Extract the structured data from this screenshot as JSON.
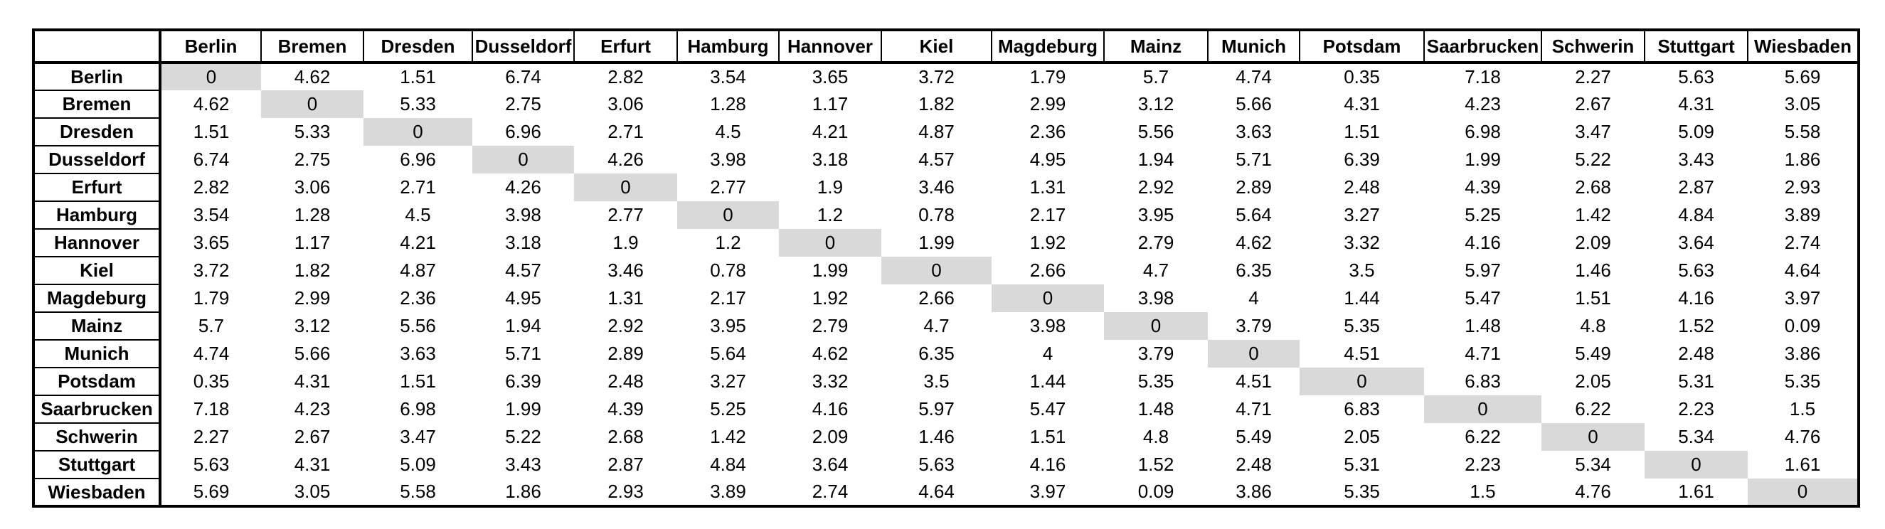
{
  "colors": {
    "diagonal_highlight": "#d9d9d9",
    "border": "#000000",
    "background": "#ffffff",
    "text": "#000000"
  },
  "chart_data": {
    "type": "table",
    "title": "",
    "corner_label": "",
    "categories": [
      "Berlin",
      "Bremen",
      "Dresden",
      "Dusseldorf",
      "Erfurt",
      "Hamburg",
      "Hannover",
      "Kiel",
      "Magdeburg",
      "Mainz",
      "Munich",
      "Potsdam",
      "Saarbrucken",
      "Schwerin",
      "Stuttgart",
      "Wiesbaden"
    ],
    "rows": [
      {
        "label": "Berlin",
        "values": [
          0,
          4.62,
          1.51,
          6.74,
          2.82,
          3.54,
          3.65,
          3.72,
          1.79,
          5.7,
          4.74,
          0.35,
          7.18,
          2.27,
          5.63,
          5.69
        ]
      },
      {
        "label": "Bremen",
        "values": [
          4.62,
          0,
          5.33,
          2.75,
          3.06,
          1.28,
          1.17,
          1.82,
          2.99,
          3.12,
          5.66,
          4.31,
          4.23,
          2.67,
          4.31,
          3.05
        ]
      },
      {
        "label": "Dresden",
        "values": [
          1.51,
          5.33,
          0,
          6.96,
          2.71,
          4.5,
          4.21,
          4.87,
          2.36,
          5.56,
          3.63,
          1.51,
          6.98,
          3.47,
          5.09,
          5.58
        ]
      },
      {
        "label": "Dusseldorf",
        "values": [
          6.74,
          2.75,
          6.96,
          0,
          4.26,
          3.98,
          3.18,
          4.57,
          4.95,
          1.94,
          5.71,
          6.39,
          1.99,
          5.22,
          3.43,
          1.86
        ]
      },
      {
        "label": "Erfurt",
        "values": [
          2.82,
          3.06,
          2.71,
          4.26,
          0,
          2.77,
          1.9,
          3.46,
          1.31,
          2.92,
          2.89,
          2.48,
          4.39,
          2.68,
          2.87,
          2.93
        ]
      },
      {
        "label": "Hamburg",
        "values": [
          3.54,
          1.28,
          4.5,
          3.98,
          2.77,
          0,
          1.2,
          0.78,
          2.17,
          3.95,
          5.64,
          3.27,
          5.25,
          1.42,
          4.84,
          3.89
        ]
      },
      {
        "label": "Hannover",
        "values": [
          3.65,
          1.17,
          4.21,
          3.18,
          1.9,
          1.2,
          0,
          1.99,
          1.92,
          2.79,
          4.62,
          3.32,
          4.16,
          2.09,
          3.64,
          2.74
        ]
      },
      {
        "label": "Kiel",
        "values": [
          3.72,
          1.82,
          4.87,
          4.57,
          3.46,
          0.78,
          1.99,
          0,
          2.66,
          4.7,
          6.35,
          3.5,
          5.97,
          1.46,
          5.63,
          4.64
        ]
      },
      {
        "label": "Magdeburg",
        "values": [
          1.79,
          2.99,
          2.36,
          4.95,
          1.31,
          2.17,
          1.92,
          2.66,
          0,
          3.98,
          4,
          1.44,
          5.47,
          1.51,
          4.16,
          3.97
        ]
      },
      {
        "label": "Mainz",
        "values": [
          5.7,
          3.12,
          5.56,
          1.94,
          2.92,
          3.95,
          2.79,
          4.7,
          3.98,
          0,
          3.79,
          5.35,
          1.48,
          4.8,
          1.52,
          0.09
        ]
      },
      {
        "label": "Munich",
        "values": [
          4.74,
          5.66,
          3.63,
          5.71,
          2.89,
          5.64,
          4.62,
          6.35,
          4,
          3.79,
          0,
          4.51,
          4.71,
          5.49,
          2.48,
          3.86
        ]
      },
      {
        "label": "Potsdam",
        "values": [
          0.35,
          4.31,
          1.51,
          6.39,
          2.48,
          3.27,
          3.32,
          3.5,
          1.44,
          5.35,
          4.51,
          0,
          6.83,
          2.05,
          5.31,
          5.35
        ]
      },
      {
        "label": "Saarbrucken",
        "values": [
          7.18,
          4.23,
          6.98,
          1.99,
          4.39,
          5.25,
          4.16,
          5.97,
          5.47,
          1.48,
          4.71,
          6.83,
          0,
          6.22,
          2.23,
          1.5
        ]
      },
      {
        "label": "Schwerin",
        "values": [
          2.27,
          2.67,
          3.47,
          5.22,
          2.68,
          1.42,
          2.09,
          1.46,
          1.51,
          4.8,
          5.49,
          2.05,
          6.22,
          0,
          5.34,
          4.76
        ]
      },
      {
        "label": "Stuttgart",
        "values": [
          5.63,
          4.31,
          5.09,
          3.43,
          2.87,
          4.84,
          3.64,
          5.63,
          4.16,
          1.52,
          2.48,
          5.31,
          2.23,
          5.34,
          0,
          1.61
        ]
      },
      {
        "label": "Wiesbaden",
        "values": [
          5.69,
          3.05,
          5.58,
          1.86,
          2.93,
          3.89,
          2.74,
          4.64,
          3.97,
          0.09,
          3.86,
          5.35,
          1.5,
          4.76,
          1.61,
          0
        ]
      }
    ],
    "layout": {
      "diagonal_highlighted": true,
      "grid_interior": false,
      "symmetric": true
    }
  }
}
